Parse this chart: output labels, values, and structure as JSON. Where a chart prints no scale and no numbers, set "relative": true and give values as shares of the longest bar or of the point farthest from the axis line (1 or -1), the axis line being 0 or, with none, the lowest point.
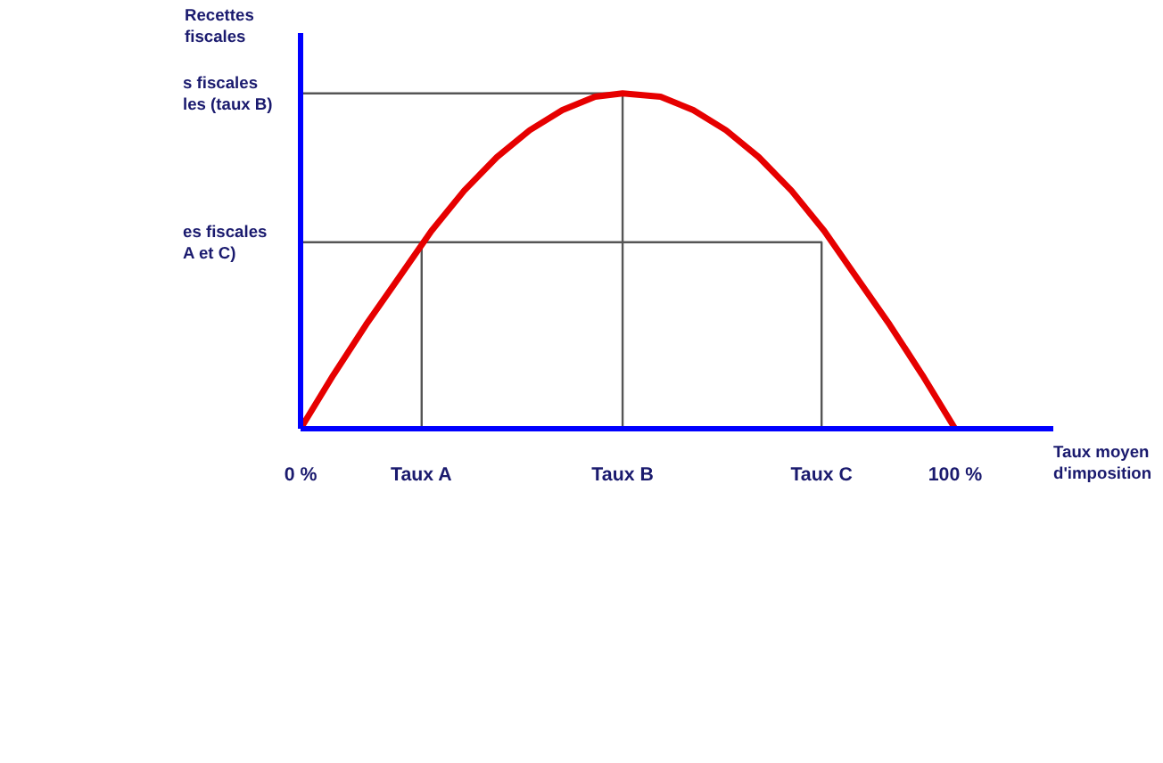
{
  "chart_data": {
    "type": "line",
    "relative": true,
    "xlabel": "Taux moyen\nd'imposition",
    "ylabel": "Recettes\nfiscales",
    "xlim": [
      0,
      115
    ],
    "xticks": [
      {
        "value": 0,
        "label": "0 %"
      },
      {
        "value": 18.5,
        "label": "Taux A"
      },
      {
        "value": 49.2,
        "label": "Taux B"
      },
      {
        "value": 79.6,
        "label": "Taux C"
      },
      {
        "value": 100,
        "label": "100 %"
      }
    ],
    "grid": false,
    "marker": "none",
    "line_style": "solid",
    "series": [
      {
        "color": "#555555",
        "x": [
          18.5,
          18.5,
          0,
          79.6,
          79.6
        ],
        "values": [
          0,
          0.556,
          0.556,
          0.556,
          0
        ]
      },
      {
        "color": "#555555",
        "x": [
          0,
          49.2,
          49.2
        ],
        "values": [
          1,
          1,
          0
        ]
      },
      {
        "color": "#e60000",
        "x": [
          0,
          5,
          10,
          15,
          20,
          25,
          30,
          35,
          40,
          45,
          49.2,
          55,
          60,
          65,
          70,
          75,
          80,
          85,
          90,
          95,
          100
        ],
        "values": [
          0,
          0.16,
          0.31,
          0.45,
          0.59,
          0.71,
          0.81,
          0.89,
          0.95,
          0.99,
          1,
          0.99,
          0.95,
          0.89,
          0.81,
          0.71,
          0.59,
          0.45,
          0.31,
          0.16,
          0
        ]
      }
    ],
    "annotations": [
      {
        "text": "s fiscales\nles (taux B)",
        "x": 0,
        "y": 1
      },
      {
        "text": "es fiscales\nA et C)",
        "x": 0,
        "y": 0.556
      }
    ]
  }
}
